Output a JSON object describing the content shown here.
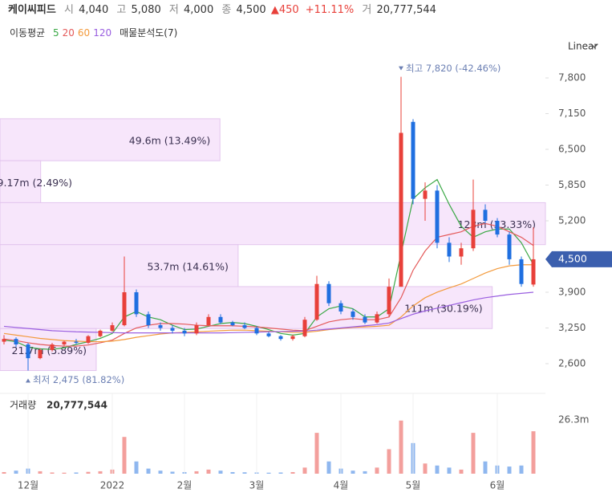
{
  "header": {
    "name": "케이씨피드",
    "open_label": "시",
    "open": "4,040",
    "high_label": "고",
    "high": "5,080",
    "low_label": "저",
    "low": "4,000",
    "close_label": "종",
    "close": "4,500",
    "change": "▲450",
    "change_pct": "+11.11%",
    "volume_label": "거",
    "volume": "20,777,544"
  },
  "chart_data": {
    "type": "candlestick",
    "ma_title": "이동평균",
    "profile_title": "매물분석도(7)",
    "scale_label": "Linear",
    "categories": [
      null,
      null,
      "12월",
      null,
      null,
      null,
      null,
      null,
      null,
      "2022",
      null,
      null,
      null,
      null,
      null,
      "2월",
      null,
      null,
      null,
      null,
      null,
      "3월",
      null,
      null,
      null,
      null,
      null,
      null,
      "4월",
      null,
      null,
      null,
      null,
      null,
      "5월",
      null,
      null,
      null,
      null,
      null,
      null,
      "6월",
      null,
      null,
      null
    ],
    "open": [
      3000,
      3050,
      2950,
      2700,
      2850,
      2950,
      3000,
      2980,
      3100,
      3200,
      3300,
      3900,
      3500,
      3300,
      3250,
      3200,
      3150,
      3300,
      3450,
      3350,
      3300,
      3250,
      3150,
      3100,
      3050,
      3100,
      3400,
      4050,
      3700,
      3550,
      3450,
      3350,
      3500,
      4000,
      7000,
      5600,
      5750,
      4800,
      4550,
      4700,
      5400,
      5200,
      4950,
      4500,
      4040
    ],
    "high": [
      3120,
      3080,
      2980,
      2880,
      2980,
      3020,
      3050,
      3120,
      3220,
      3350,
      4550,
      3950,
      3550,
      3350,
      3300,
      3250,
      3350,
      3500,
      3500,
      3380,
      3350,
      3280,
      3180,
      3120,
      3130,
      3450,
      4200,
      4100,
      3750,
      3600,
      3500,
      3550,
      4150,
      7820,
      7050,
      5900,
      5850,
      4900,
      4800,
      5950,
      5500,
      5250,
      5000,
      4550,
      5080
    ],
    "low": [
      2950,
      2900,
      2475,
      2680,
      2820,
      2920,
      2950,
      2960,
      3080,
      3180,
      3280,
      3450,
      3250,
      3200,
      3150,
      3100,
      3120,
      3280,
      3320,
      3280,
      3230,
      3120,
      3080,
      3020,
      3020,
      3080,
      3380,
      3650,
      3500,
      3400,
      3320,
      3330,
      3450,
      4000,
      5500,
      5200,
      4700,
      4450,
      4400,
      4650,
      5150,
      4900,
      4400,
      4000,
      4000
    ],
    "close": [
      3050,
      2950,
      2700,
      2850,
      2950,
      3000,
      2980,
      3100,
      3200,
      3300,
      3900,
      3500,
      3300,
      3250,
      3200,
      3150,
      3300,
      3450,
      3350,
      3300,
      3250,
      3150,
      3100,
      3050,
      3100,
      3400,
      4050,
      3700,
      3550,
      3450,
      3350,
      3500,
      4000,
      6800,
      5600,
      5750,
      4800,
      4550,
      4700,
      5400,
      5200,
      4950,
      4500,
      4050,
      4500
    ],
    "up_color": "#e8403a",
    "down_color": "#1f6fe0",
    "ma": [
      {
        "name": "5",
        "color": "#3aa845",
        "values": [
          3030,
          3000,
          2900,
          2870,
          2860,
          2890,
          2950,
          3000,
          3060,
          3150,
          3450,
          3550,
          3450,
          3400,
          3300,
          3220,
          3230,
          3280,
          3330,
          3350,
          3330,
          3280,
          3220,
          3150,
          3120,
          3150,
          3450,
          3600,
          3650,
          3600,
          3450,
          3450,
          3600,
          4600,
          5600,
          5800,
          5950,
          5500,
          5100,
          4900,
          5000,
          5050,
          5050,
          4800,
          4400
        ]
      },
      {
        "name": "20",
        "color": "#e45a5a",
        "values": [
          3050,
          3020,
          2980,
          2950,
          2930,
          2920,
          2920,
          2940,
          2980,
          3030,
          3150,
          3250,
          3300,
          3330,
          3330,
          3320,
          3300,
          3290,
          3290,
          3290,
          3280,
          3270,
          3250,
          3230,
          3210,
          3200,
          3280,
          3360,
          3400,
          3420,
          3400,
          3400,
          3450,
          3800,
          4300,
          4650,
          4900,
          4950,
          5000,
          5100,
          5150,
          5100,
          5000,
          4900,
          4750
        ]
      },
      {
        "name": "60",
        "color": "#f39a3c",
        "values": [
          3150,
          3120,
          3090,
          3060,
          3040,
          3020,
          3010,
          3000,
          3000,
          3010,
          3040,
          3080,
          3110,
          3140,
          3160,
          3170,
          3180,
          3190,
          3200,
          3210,
          3210,
          3200,
          3190,
          3180,
          3170,
          3170,
          3190,
          3220,
          3240,
          3260,
          3270,
          3280,
          3300,
          3450,
          3650,
          3800,
          3900,
          3980,
          4050,
          4150,
          4250,
          4330,
          4380,
          4400,
          4400
        ]
      },
      {
        "name": "120",
        "color": "#9a5fe0",
        "values": [
          3280,
          3260,
          3240,
          3220,
          3200,
          3190,
          3180,
          3175,
          3170,
          3165,
          3160,
          3160,
          3160,
          3160,
          3160,
          3160,
          3160,
          3160,
          3160,
          3165,
          3170,
          3175,
          3180,
          3185,
          3190,
          3195,
          3210,
          3230,
          3250,
          3270,
          3290,
          3310,
          3340,
          3420,
          3500,
          3560,
          3610,
          3660,
          3710,
          3760,
          3800,
          3830,
          3860,
          3880,
          3900
        ]
      }
    ],
    "volume_profile": [
      {
        "low": 6293,
        "high": 7057,
        "volume": 49600000,
        "label": "49.6m (13.49%)"
      },
      {
        "low": 5530,
        "high": 6293,
        "volume": 9170000,
        "label": "9.17m (2.49%)"
      },
      {
        "low": 4766,
        "high": 5530,
        "volume": 123000000,
        "label": "123m (33.33%)"
      },
      {
        "low": 4002,
        "high": 4766,
        "volume": 53700000,
        "label": "53.7m (14.61%)"
      },
      {
        "low": 3239,
        "high": 4002,
        "volume": 111000000,
        "label": "111m (30.19%)"
      },
      {
        "low": 2475,
        "high": 3239,
        "volume": 21700000,
        "label": "21.7m (5.89%)"
      }
    ],
    "ylim": [
      2132,
      8268
    ],
    "yticks": [
      {
        "value": 2600,
        "label": "2,600"
      },
      {
        "value": 3250,
        "label": "3,250"
      },
      {
        "value": 3900,
        "label": "3,900"
      },
      {
        "value": 5200,
        "label": "5,200"
      },
      {
        "value": 5850,
        "label": "5,850"
      },
      {
        "value": 6500,
        "label": "6,500"
      },
      {
        "value": 7150,
        "label": "7,150"
      },
      {
        "value": 7800,
        "label": "7,800"
      }
    ],
    "current_price": {
      "value": 4500,
      "label": "4,500"
    },
    "annotations": [
      {
        "index": 33,
        "value": 7820,
        "text": "최고 7,820 (-42.46%)"
      },
      {
        "index": 2,
        "value": 2475,
        "text": "최저 2,475 (81.82%)"
      }
    ],
    "volume_title": "거래량",
    "volume_total": "20,777,544",
    "volume": [
      800000,
      1500000,
      2500000,
      1200000,
      600000,
      500000,
      600000,
      900000,
      1200000,
      2000000,
      18000000,
      6000000,
      2500000,
      1500000,
      1000000,
      800000,
      1200000,
      2000000,
      1500000,
      800000,
      700000,
      600000,
      500000,
      600000,
      800000,
      3000000,
      20000000,
      6000000,
      2500000,
      1500000,
      1200000,
      3000000,
      12000000,
      26000000,
      15000000,
      5000000,
      4000000,
      3000000,
      2000000,
      20000000,
      6000000,
      4000000,
      3500000,
      4000000,
      20777544
    ],
    "vlim": [
      0,
      39300000
    ],
    "vticks": [
      {
        "value": 26300000,
        "label": "26.3m"
      }
    ]
  }
}
